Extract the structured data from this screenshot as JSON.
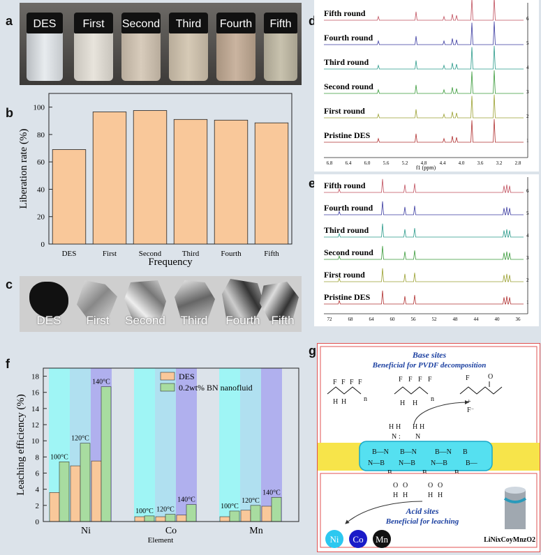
{
  "panel_labels": {
    "a": "a",
    "b": "b",
    "c": "c",
    "d": "d",
    "e": "e",
    "f": "f",
    "g": "g"
  },
  "panel_a": {
    "vials": [
      "DES",
      "First",
      "Second",
      "Third",
      "Fourth",
      "Fifth"
    ]
  },
  "panel_c": {
    "foils": [
      "DES",
      "First",
      "Second",
      "Third",
      "Fourth",
      "Fifth"
    ]
  },
  "chart_data": [
    {
      "id": "b",
      "type": "bar",
      "categories": [
        "DES",
        "First",
        "Second",
        "Third",
        "Fourth",
        "Fifth"
      ],
      "values": [
        69,
        96.5,
        97.5,
        91,
        90.5,
        88.5
      ],
      "xlabel": "Frequency",
      "ylabel": "Liberation rate (%)",
      "ylim": [
        0,
        110
      ],
      "yticks": [
        0,
        20,
        40,
        60,
        80,
        100
      ],
      "bar_color": "#f9c89a"
    },
    {
      "id": "d",
      "type": "line",
      "xlabel": "f1 (ppm)",
      "xticks": [
        "6.8",
        "6.4",
        "6.0",
        "5.6",
        "5.2",
        "4.8",
        "4.4",
        "4.0",
        "3.6",
        "3.2",
        "2.8"
      ],
      "series": [
        {
          "label": "Fifth round",
          "index": "6",
          "color": "#c0505e"
        },
        {
          "label": "Fourth round",
          "index": "5",
          "color": "#3a3aa0"
        },
        {
          "label": "Third round",
          "index": "4",
          "color": "#2a9a8a"
        },
        {
          "label": "Second round",
          "index": "3",
          "color": "#3a9a3a"
        },
        {
          "label": "First round",
          "index": "2",
          "color": "#9aa030"
        },
        {
          "label": "Pristine DES",
          "index": "1",
          "color": "#b03030"
        }
      ]
    },
    {
      "id": "e",
      "type": "line",
      "xticks": [
        "72",
        "68",
        "64",
        "60",
        "56",
        "52",
        "48",
        "44",
        "40",
        "36"
      ],
      "series": [
        {
          "label": "Fifth round",
          "index": "6",
          "color": "#c0505e"
        },
        {
          "label": "Fourth round",
          "index": "5",
          "color": "#3a3aa0"
        },
        {
          "label": "Third round",
          "index": "4",
          "color": "#2a9a8a"
        },
        {
          "label": "Second round",
          "index": "3",
          "color": "#3a9a3a"
        },
        {
          "label": "First round",
          "index": "2",
          "color": "#9aa030"
        },
        {
          "label": "Pristine DES",
          "index": "1",
          "color": "#b03030"
        }
      ]
    },
    {
      "id": "f",
      "type": "bar",
      "categories": [
        "Ni",
        "Co",
        "Mn"
      ],
      "xlabel": "Element",
      "ylabel": "Leaching efficiency (%)",
      "ylim": [
        0,
        19
      ],
      "yticks": [
        0,
        2,
        4,
        6,
        8,
        10,
        12,
        14,
        16,
        18
      ],
      "temperatures": [
        "100°C",
        "120°C",
        "140°C"
      ],
      "series": [
        {
          "name": "DES",
          "color": "#f9c89a",
          "values": [
            [
              3.6,
              6.9,
              7.5
            ],
            [
              0.6,
              0.6,
              0.8
            ],
            [
              0.6,
              1.4,
              1.9
            ]
          ]
        },
        {
          "name": "0.2wt% BN nanofluid",
          "color": "#a8dca0",
          "values": [
            [
              7.4,
              9.7,
              16.7
            ],
            [
              0.7,
              0.9,
              2.1
            ],
            [
              1.3,
              2.0,
              3.0
            ]
          ]
        }
      ],
      "band_colors": [
        "#9ff5f5",
        "#b0e0f0",
        "#b0b0ee"
      ]
    }
  ],
  "panel_g": {
    "base_title": "Base sites",
    "base_subtitle": "Beneficial for PVDF decomposition",
    "acid_title": "Acid sites",
    "acid_subtitle": "Beneficial for leaching",
    "metals": [
      "Ni",
      "Co",
      "Mn"
    ],
    "cathode": "LiNixCoyMnzO2"
  }
}
